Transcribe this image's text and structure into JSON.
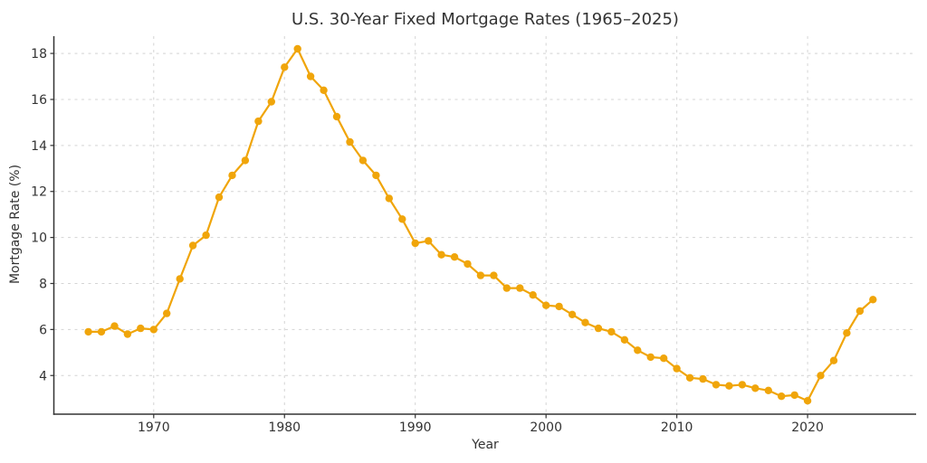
{
  "chart_data": {
    "type": "line",
    "title": "U.S. 30-Year Fixed Mortgage Rates (1965–2025)",
    "xlabel": "Year",
    "ylabel": "Mortgage Rate (%)",
    "x_ticks": [
      1970,
      1980,
      1990,
      2000,
      2010,
      2020
    ],
    "y_ticks": [
      4,
      6,
      8,
      10,
      12,
      14,
      16,
      18
    ],
    "xlim": [
      1962.4,
      2028.3
    ],
    "ylim": [
      2.32,
      18.75
    ],
    "grid": true,
    "grid_style": "dashed",
    "legend": false,
    "line_color": "#F0A50A",
    "marker": "circle",
    "axis_color": "#333333",
    "grid_color": "#d4d4d4",
    "series": [
      {
        "name": "30-Year Fixed Rate",
        "x": [
          1965,
          1966,
          1967,
          1968,
          1969,
          1970,
          1971,
          1972,
          1973,
          1974,
          1975,
          1976,
          1977,
          1978,
          1979,
          1980,
          1981,
          1982,
          1983,
          1984,
          1985,
          1986,
          1987,
          1988,
          1989,
          1990,
          1991,
          1992,
          1993,
          1994,
          1995,
          1996,
          1997,
          1998,
          1999,
          2000,
          2001,
          2002,
          2003,
          2004,
          2005,
          2006,
          2007,
          2008,
          2009,
          2010,
          2011,
          2012,
          2013,
          2014,
          2015,
          2016,
          2017,
          2018,
          2019,
          2020,
          2021,
          2022,
          2023,
          2024,
          2025
        ],
        "values": [
          5.9,
          5.9,
          6.15,
          5.8,
          6.05,
          6.0,
          6.7,
          8.2,
          9.65,
          10.1,
          11.75,
          12.7,
          13.35,
          15.05,
          15.9,
          17.4,
          18.2,
          17.0,
          16.4,
          15.25,
          14.15,
          13.35,
          12.7,
          11.7,
          10.8,
          9.75,
          9.85,
          9.25,
          9.15,
          8.85,
          8.35,
          8.35,
          7.8,
          7.8,
          7.5,
          7.05,
          7.0,
          6.65,
          6.3,
          6.05,
          5.9,
          5.55,
          5.1,
          4.8,
          4.75,
          4.3,
          3.9,
          3.85,
          3.6,
          3.55,
          3.6,
          3.45,
          3.35,
          3.1,
          3.15,
          2.9,
          4.0,
          4.65,
          5.85,
          6.8,
          7.3
        ]
      }
    ]
  }
}
